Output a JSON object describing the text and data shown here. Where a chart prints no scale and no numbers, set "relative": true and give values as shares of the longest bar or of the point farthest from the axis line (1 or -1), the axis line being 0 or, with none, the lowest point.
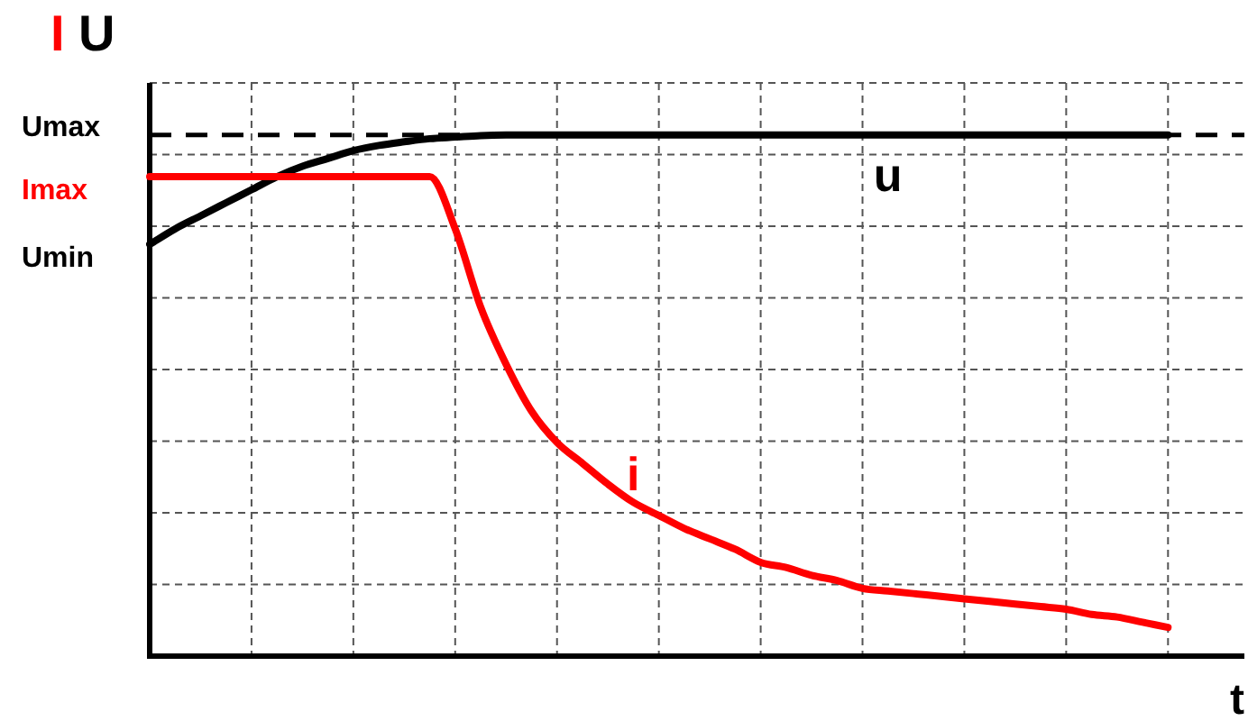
{
  "chart_data": {
    "type": "line",
    "relative": true,
    "ylabel": "I U",
    "xlabel": "t",
    "grid": true,
    "legend": false,
    "marker": "none",
    "line_style": "solid",
    "categories": [
      null,
      null,
      null,
      null,
      null,
      null,
      null,
      null,
      null,
      null,
      null,
      null,
      null,
      null,
      null,
      null,
      null,
      null,
      null,
      null,
      null,
      null,
      null,
      null,
      null,
      null,
      null,
      null,
      null,
      null,
      null,
      null,
      null,
      null,
      null,
      null,
      null,
      null,
      null,
      null,
      null,
      null,
      null,
      null
    ],
    "series": [
      {
        "name": "i",
        "color": "#ff0000",
        "values": [
          0.92,
          0.92,
          0.92,
          0.92,
          0.92,
          0.92,
          0.92,
          0.92,
          0.92,
          0.92,
          0.92,
          0.92,
          0.82,
          0.67,
          0.56,
          0.47,
          0.41,
          0.37,
          0.33,
          0.295,
          0.27,
          0.245,
          0.225,
          0.205,
          0.18,
          0.17,
          0.155,
          0.145,
          0.13,
          0.125,
          0.12,
          0.115,
          0.11,
          0.105,
          0.1,
          0.095,
          0.09,
          0.08,
          0.075,
          0.065,
          0.055,
          null,
          null,
          null
        ]
      },
      {
        "name": "u",
        "color": "#000000",
        "values": [
          0.79,
          0.82,
          0.845,
          0.87,
          0.895,
          0.92,
          0.94,
          0.955,
          0.97,
          0.98,
          0.987,
          0.993,
          0.996,
          0.999,
          1,
          1,
          1,
          1,
          1,
          1,
          1,
          1,
          1,
          1,
          1,
          1,
          1,
          1,
          1,
          1,
          1,
          1,
          1,
          1,
          1,
          1,
          1,
          1,
          1,
          1,
          1,
          null,
          null,
          null
        ]
      }
    ],
    "ref_lines": [
      {
        "axis": "y",
        "value": 1,
        "label": "Umax",
        "color": "#000000",
        "line_style": "dashed"
      }
    ],
    "annotations": [
      "Imax",
      "Umin"
    ]
  }
}
